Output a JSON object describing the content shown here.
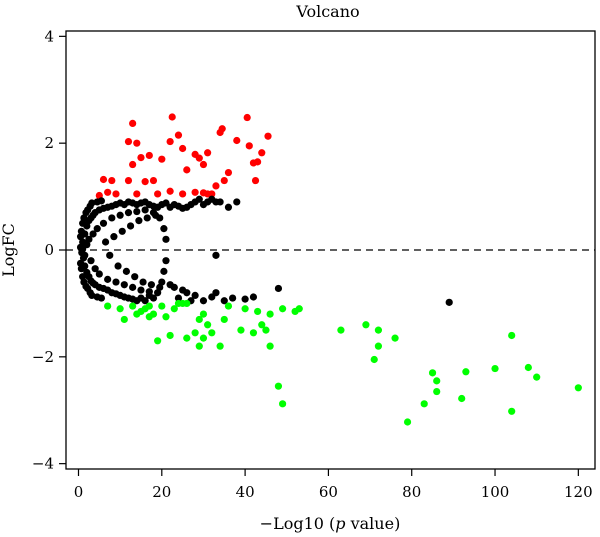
{
  "chart_data": {
    "type": "scatter",
    "title": "Volcano",
    "xlabel_prefix": "−Log10 (",
    "xlabel_italic": "p",
    "xlabel_suffix": " value)",
    "ylabel": "LogFC",
    "xlim": [
      -3,
      124
    ],
    "ylim": [
      -4.1,
      4.1
    ],
    "x_ticks": [
      0,
      20,
      40,
      60,
      80,
      100,
      120
    ],
    "y_ticks": [
      -4,
      -2,
      0,
      2,
      4
    ],
    "reference_line": {
      "y": 0,
      "style": "dashed"
    },
    "grid": false,
    "legend": "none",
    "colors": {
      "up": "#ff0000",
      "not_significant": "#000000",
      "down": "#00ff00"
    },
    "series": [
      {
        "key": "up",
        "points": [
          [
            13,
            2.37
          ],
          [
            22.5,
            2.49
          ],
          [
            40.5,
            2.48
          ],
          [
            12,
            2.03
          ],
          [
            14,
            2.0
          ],
          [
            22,
            2.03
          ],
          [
            24,
            2.15
          ],
          [
            25,
            1.9
          ],
          [
            28,
            1.79
          ],
          [
            29,
            1.72
          ],
          [
            31,
            1.82
          ],
          [
            34,
            2.2
          ],
          [
            34.5,
            2.27
          ],
          [
            38,
            2.05
          ],
          [
            41,
            1.95
          ],
          [
            42,
            1.63
          ],
          [
            43,
            1.65
          ],
          [
            44,
            1.82
          ],
          [
            45.5,
            2.13
          ],
          [
            13,
            1.6
          ],
          [
            15,
            1.73
          ],
          [
            17,
            1.77
          ],
          [
            20,
            1.7
          ],
          [
            26,
            1.5
          ],
          [
            30,
            1.6
          ],
          [
            42.5,
            1.3
          ],
          [
            6,
            1.32
          ],
          [
            8,
            1.3
          ],
          [
            9,
            1.05
          ],
          [
            12,
            1.3
          ],
          [
            14,
            1.05
          ],
          [
            16,
            1.28
          ],
          [
            18,
            1.3
          ],
          [
            19,
            1.05
          ],
          [
            22,
            1.1
          ],
          [
            25,
            1.05
          ],
          [
            28,
            1.08
          ],
          [
            30,
            1.07
          ],
          [
            31,
            1.05
          ],
          [
            32,
            1.05
          ],
          [
            33,
            1.2
          ],
          [
            35,
            1.3
          ],
          [
            36,
            1.45
          ],
          [
            5,
            1.02
          ],
          [
            7,
            1.08
          ]
        ]
      },
      {
        "key": "not_significant",
        "points": [
          [
            0.5,
            0.05
          ],
          [
            0.8,
            -0.05
          ],
          [
            1,
            0.15
          ],
          [
            1.2,
            -0.15
          ],
          [
            1.5,
            0.3
          ],
          [
            1.5,
            -0.3
          ],
          [
            2,
            0.45
          ],
          [
            2,
            -0.42
          ],
          [
            2.5,
            0.55
          ],
          [
            2.5,
            -0.5
          ],
          [
            3,
            0.6
          ],
          [
            3,
            -0.58
          ],
          [
            3.5,
            0.65
          ],
          [
            3.5,
            -0.62
          ],
          [
            4,
            0.7
          ],
          [
            4,
            -0.65
          ],
          [
            5,
            0.75
          ],
          [
            5,
            -0.7
          ],
          [
            6,
            0.78
          ],
          [
            6,
            -0.72
          ],
          [
            7,
            0.8
          ],
          [
            7,
            -0.75
          ],
          [
            8,
            0.82
          ],
          [
            8,
            -0.8
          ],
          [
            9,
            0.85
          ],
          [
            9,
            -0.82
          ],
          [
            10,
            0.88
          ],
          [
            10,
            -0.85
          ],
          [
            11,
            0.85
          ],
          [
            11,
            -0.88
          ],
          [
            12,
            0.9
          ],
          [
            12,
            -0.9
          ],
          [
            13,
            0.88
          ],
          [
            13,
            -0.92
          ],
          [
            14,
            0.85
          ],
          [
            14,
            -0.95
          ],
          [
            15,
            0.88
          ],
          [
            15,
            -0.9
          ],
          [
            16,
            0.9
          ],
          [
            16,
            -0.95
          ],
          [
            17,
            0.85
          ],
          [
            17,
            -0.85
          ],
          [
            18,
            0.82
          ],
          [
            18,
            -0.9
          ],
          [
            19,
            0.8
          ],
          [
            20,
            0.85
          ],
          [
            21,
            0.88
          ],
          [
            22,
            0.8
          ],
          [
            23,
            0.85
          ],
          [
            24,
            0.82
          ],
          [
            25,
            0.78
          ],
          [
            26,
            0.8
          ],
          [
            27,
            0.85
          ],
          [
            28,
            0.9
          ],
          [
            29,
            0.95
          ],
          [
            30,
            0.85
          ],
          [
            31,
            0.9
          ],
          [
            32,
            0.95
          ],
          [
            33,
            0.9
          ],
          [
            0.5,
            0.25
          ],
          [
            0.5,
            -0.25
          ],
          [
            0.7,
            0.35
          ],
          [
            0.7,
            -0.35
          ],
          [
            1,
            0.5
          ],
          [
            1,
            -0.5
          ],
          [
            1.3,
            0.6
          ],
          [
            1.3,
            -0.6
          ],
          [
            1.8,
            0.7
          ],
          [
            1.8,
            -0.68
          ],
          [
            2.2,
            0.75
          ],
          [
            2.2,
            -0.72
          ],
          [
            2.8,
            0.82
          ],
          [
            2.8,
            -0.8
          ],
          [
            3.2,
            0.88
          ],
          [
            3.2,
            -0.85
          ],
          [
            4.5,
            0.9
          ],
          [
            4.5,
            -0.88
          ],
          [
            5.5,
            0.92
          ],
          [
            5.5,
            -0.9
          ],
          [
            1,
            0.02
          ],
          [
            1.5,
            -0.1
          ],
          [
            2,
            0.1
          ],
          [
            2.5,
            0.2
          ],
          [
            3,
            -0.2
          ],
          [
            3.5,
            0.3
          ],
          [
            4,
            -0.35
          ],
          [
            4.5,
            0.4
          ],
          [
            5,
            -0.45
          ],
          [
            6,
            0.5
          ],
          [
            7,
            -0.55
          ],
          [
            8,
            0.6
          ],
          [
            9,
            -0.6
          ],
          [
            10,
            0.65
          ],
          [
            11,
            -0.65
          ],
          [
            12,
            0.7
          ],
          [
            13,
            -0.7
          ],
          [
            14,
            0.72
          ],
          [
            15,
            -0.75
          ],
          [
            16,
            0.75
          ],
          [
            17,
            -0.78
          ],
          [
            18,
            0.7
          ],
          [
            19,
            -0.8
          ],
          [
            20,
            -0.6
          ],
          [
            21,
            -0.2
          ],
          [
            21,
            0.2
          ],
          [
            20.5,
            -0.4
          ],
          [
            20.5,
            0.4
          ],
          [
            19.5,
            0.6
          ],
          [
            22,
            -0.65
          ],
          [
            23,
            -0.7
          ],
          [
            24,
            -0.9
          ],
          [
            25,
            -0.75
          ],
          [
            26,
            -0.8
          ],
          [
            27,
            -0.95
          ],
          [
            28,
            -0.85
          ],
          [
            30,
            -0.95
          ],
          [
            32,
            -0.88
          ],
          [
            33,
            -0.8
          ],
          [
            35,
            -0.95
          ],
          [
            37,
            -0.9
          ],
          [
            40,
            -0.92
          ],
          [
            42,
            -0.88
          ],
          [
            48,
            -0.72
          ],
          [
            33,
            -0.1
          ],
          [
            34,
            0.9
          ],
          [
            36,
            0.8
          ],
          [
            38,
            0.9
          ],
          [
            89,
            -0.98
          ],
          [
            6.5,
            0.15
          ],
          [
            7.5,
            -0.1
          ],
          [
            8.5,
            0.25
          ],
          [
            9.5,
            -0.3
          ],
          [
            10.5,
            0.35
          ],
          [
            11.5,
            -0.4
          ],
          [
            12.5,
            0.45
          ],
          [
            13.5,
            -0.5
          ],
          [
            14.5,
            0.55
          ],
          [
            15.5,
            -0.6
          ],
          [
            16.5,
            0.6
          ],
          [
            17.5,
            -0.65
          ],
          [
            18.5,
            0.65
          ],
          [
            19.5,
            -0.7
          ]
        ]
      },
      {
        "key": "down",
        "points": [
          [
            7,
            -1.05
          ],
          [
            10,
            -1.1
          ],
          [
            11,
            -1.3
          ],
          [
            13,
            -1.05
          ],
          [
            14,
            -1.2
          ],
          [
            15,
            -1.15
          ],
          [
            16,
            -1.1
          ],
          [
            17,
            -1.05
          ],
          [
            17,
            -1.25
          ],
          [
            18,
            -1.2
          ],
          [
            19,
            -1.7
          ],
          [
            20,
            -1.05
          ],
          [
            21,
            -1.25
          ],
          [
            22,
            -1.6
          ],
          [
            23,
            -1.1
          ],
          [
            24,
            -1.0
          ],
          [
            25,
            -1.0
          ],
          [
            26,
            -1.0
          ],
          [
            26,
            -1.65
          ],
          [
            28,
            -1.55
          ],
          [
            29,
            -1.3
          ],
          [
            29,
            -1.8
          ],
          [
            30,
            -1.2
          ],
          [
            30,
            -1.65
          ],
          [
            31,
            -1.4
          ],
          [
            32,
            -1.55
          ],
          [
            34,
            -1.8
          ],
          [
            35,
            -1.3
          ],
          [
            36,
            -1.05
          ],
          [
            39,
            -1.5
          ],
          [
            40,
            -1.1
          ],
          [
            42,
            -1.55
          ],
          [
            43,
            -1.15
          ],
          [
            44,
            -1.4
          ],
          [
            45,
            -1.5
          ],
          [
            46,
            -1.8
          ],
          [
            46,
            -1.2
          ],
          [
            49,
            -1.1
          ],
          [
            52,
            -1.15
          ],
          [
            53,
            -1.1
          ],
          [
            48,
            -2.55
          ],
          [
            49,
            -2.88
          ],
          [
            63,
            -1.5
          ],
          [
            69,
            -1.4
          ],
          [
            71,
            -2.05
          ],
          [
            72,
            -1.5
          ],
          [
            72,
            -1.8
          ],
          [
            76,
            -1.65
          ],
          [
            79,
            -3.22
          ],
          [
            83,
            -2.88
          ],
          [
            85,
            -2.3
          ],
          [
            86,
            -2.45
          ],
          [
            86,
            -2.65
          ],
          [
            92,
            -2.78
          ],
          [
            93,
            -2.28
          ],
          [
            100,
            -2.22
          ],
          [
            104,
            -1.6
          ],
          [
            104,
            -3.02
          ],
          [
            108,
            -2.2
          ],
          [
            110,
            -2.38
          ],
          [
            120,
            -2.58
          ]
        ]
      }
    ]
  }
}
